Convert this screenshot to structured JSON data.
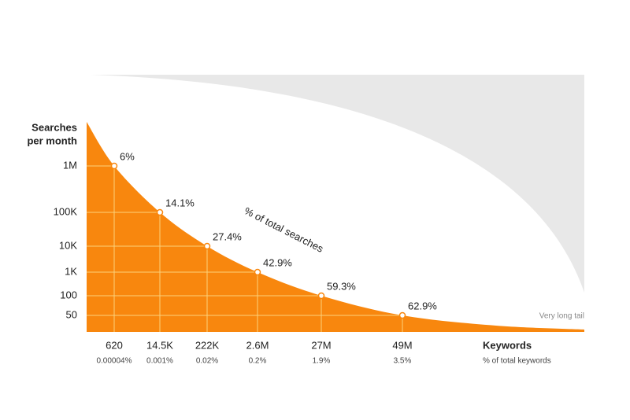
{
  "y_axis": {
    "title_lines": [
      "Searches",
      "per month"
    ],
    "ticks": [
      "1M",
      "100K",
      "10K",
      "1K",
      "100",
      "50"
    ]
  },
  "curve_label": "% of total searches",
  "points": [
    {
      "label": "6%",
      "keywords": "620",
      "share": "0.00004%"
    },
    {
      "label": "14.1%",
      "keywords": "14.5K",
      "share": "0.001%"
    },
    {
      "label": "27.4%",
      "keywords": "222K",
      "share": "0.02%"
    },
    {
      "label": "42.9%",
      "keywords": "2.6M",
      "share": "0.2%"
    },
    {
      "label": "59.3%",
      "keywords": "27M",
      "share": "1.9%"
    },
    {
      "label": "62.9%",
      "keywords": "49M",
      "share": "3.5%"
    }
  ],
  "tail_label": "Very long tail",
  "x_axis": {
    "title": "Keywords",
    "subtitle": "% of total keywords"
  }
}
